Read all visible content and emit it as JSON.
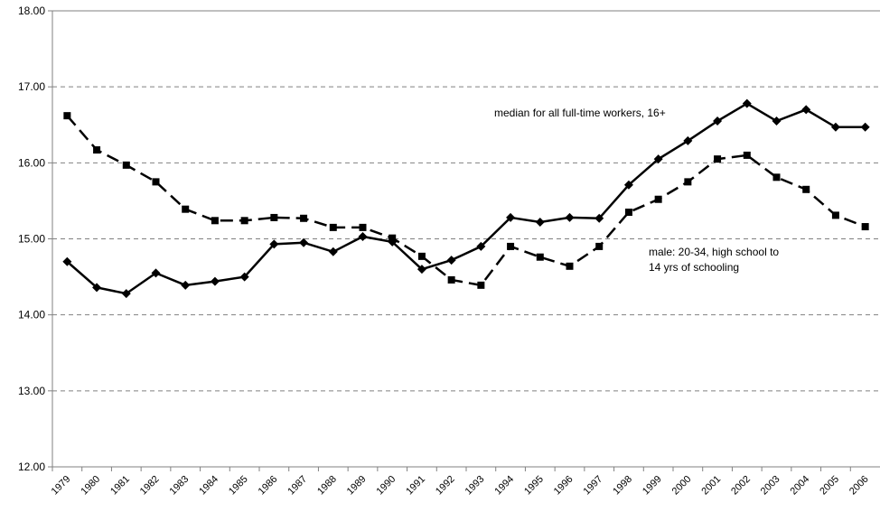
{
  "chart_data": {
    "type": "line",
    "categories": [
      "1979",
      "1980",
      "1981",
      "1982",
      "1983",
      "1984",
      "1985",
      "1986",
      "1987",
      "1988",
      "1989",
      "1990",
      "1991",
      "1992",
      "1993",
      "1994",
      "1995",
      "1996",
      "1997",
      "1998",
      "1999",
      "2000",
      "2001",
      "2002",
      "2003",
      "2004",
      "2005",
      "2006"
    ],
    "series": [
      {
        "color": "#000000",
        "dashed": false,
        "marker": "diamond",
        "values": [
          14.7,
          14.36,
          14.28,
          14.55,
          14.39,
          14.44,
          14.5,
          14.93,
          14.95,
          14.83,
          15.03,
          14.96,
          14.6,
          14.72,
          14.9,
          15.28,
          15.22,
          15.28,
          15.27,
          15.71,
          16.05,
          16.29,
          16.55,
          16.78,
          16.55,
          16.7,
          16.47,
          16.47
        ]
      },
      {
        "color": "#000000",
        "dashed": true,
        "marker": "square",
        "values": [
          16.62,
          16.17,
          15.97,
          15.75,
          15.39,
          15.24,
          15.24,
          15.28,
          15.27,
          15.15,
          15.15,
          15.01,
          14.77,
          14.46,
          14.39,
          14.9,
          14.76,
          14.64,
          14.9,
          15.35,
          15.52,
          15.75,
          16.05,
          16.1,
          15.81,
          15.65,
          15.31,
          15.16
        ]
      }
    ],
    "annotations": [
      "median for all full-time workers, 16+",
      "male: 20-34, high school to",
      "14 yrs of schooling"
    ],
    "ylim": [
      12,
      18
    ],
    "yticks": [
      {
        "value": 12,
        "label": "12.00"
      },
      {
        "value": 13,
        "label": "13.00"
      },
      {
        "value": 14,
        "label": "14.00"
      },
      {
        "value": 15,
        "label": "15.00"
      },
      {
        "value": 16,
        "label": "16.00"
      },
      {
        "value": 17,
        "label": "17.00"
      },
      {
        "value": 18,
        "label": "18.00"
      }
    ],
    "grid": true
  }
}
